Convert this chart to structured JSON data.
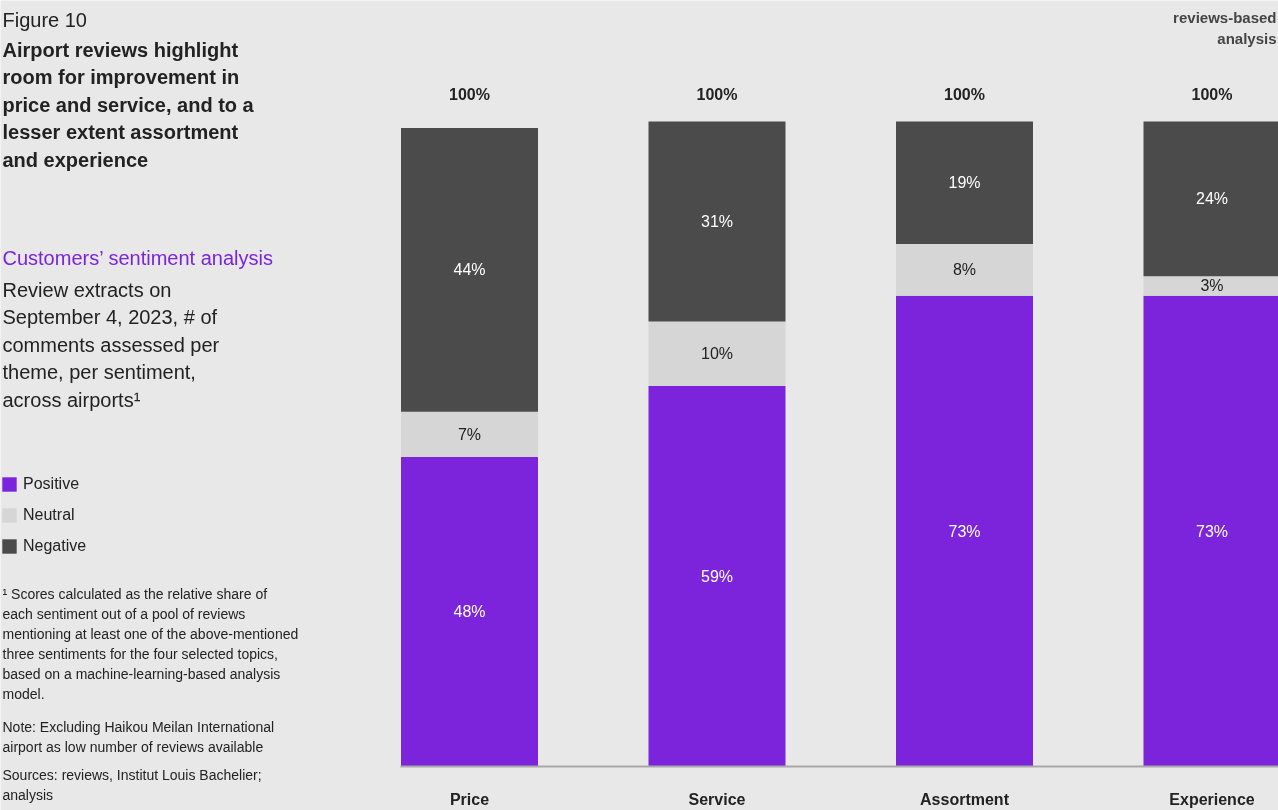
{
  "chart_data": {
    "type": "bar",
    "stacked": true,
    "title": "Airport reviews highlight room for improvement in price and service, and to a lesser extent assortment and experience",
    "subtitle": "Customers’ sentiment analysis",
    "categories": [
      "Price",
      "Service",
      "Assortment",
      "Experience"
    ],
    "series": [
      {
        "name": "Positive",
        "color": "#7b24dc",
        "values": [
          48,
          59,
          73,
          73
        ],
        "value_labels": [
          "48%",
          "59%",
          "73%",
          "73%"
        ]
      },
      {
        "name": "Neutral",
        "color": "#d6d6d6",
        "values": [
          7,
          10,
          8,
          3
        ],
        "value_labels": [
          "7%",
          "10%",
          "8%",
          "3%"
        ]
      },
      {
        "name": "Negative",
        "color": "#4b4b4b",
        "values": [
          44,
          31,
          19,
          24
        ],
        "value_labels": [
          "44%",
          "31%",
          "19%",
          "24%"
        ]
      }
    ],
    "totals": [
      "100%",
      "100%",
      "100%",
      "100%"
    ],
    "legend": "left",
    "annotations": [
      "Figure 10",
      "Review extracts on September 4, 2023, # of comments assessed per theme, per sentiment, across airports¹",
      "reviews-based analysis",
      "¹ Scores calculated as the relative share of each sentiment out of a pool of reviews mentioning at least one of the above-mentioned three sentiments for the four selected topics, based on a machine-learning-based analysis model.",
      "Note: Excluding Haikou Meilan International airport as low number of reviews available",
      "Sources: reviews, Institut Louis Bachelier; analysis"
    ]
  }
}
